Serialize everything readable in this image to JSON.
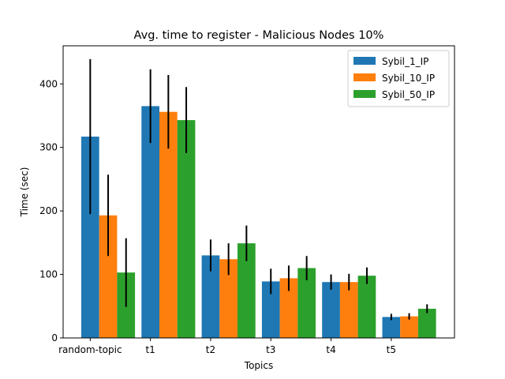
{
  "chart_data": {
    "type": "bar",
    "title": "Avg. time to register - Malicious Nodes 10%",
    "xlabel": "Topics",
    "ylabel": "Time (sec)",
    "categories": [
      "random-topic",
      "t1",
      "t2",
      "t3",
      "t4",
      "t5"
    ],
    "ylim": [
      0,
      460
    ],
    "yticks": [
      0,
      100,
      200,
      300,
      400
    ],
    "legend_position": "top-right",
    "grid": false,
    "series": [
      {
        "name": "Sybil_1_IP",
        "color": "#1f77b4",
        "values": [
          317,
          365,
          130,
          89,
          88,
          33
        ],
        "errors": [
          122,
          58,
          25,
          20,
          12,
          5
        ]
      },
      {
        "name": "Sybil_10_IP",
        "color": "#ff7f0e",
        "values": [
          193,
          356,
          124,
          94,
          88,
          34
        ],
        "errors": [
          64,
          58,
          25,
          20,
          13,
          5
        ]
      },
      {
        "name": "Sybil_50_IP",
        "color": "#2ca02c",
        "values": [
          103,
          343,
          149,
          110,
          98,
          46
        ],
        "errors": [
          54,
          52,
          28,
          19,
          13,
          7
        ]
      }
    ]
  }
}
